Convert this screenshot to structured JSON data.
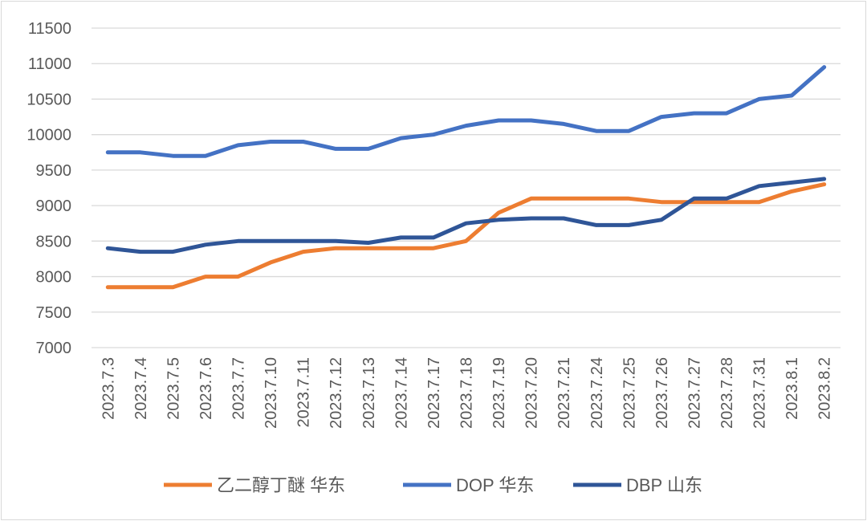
{
  "chart_data": {
    "type": "line",
    "title": "",
    "xlabel": "",
    "ylabel": "",
    "ylim": [
      7000,
      11500
    ],
    "yticks": [
      7000,
      7500,
      8000,
      8500,
      9000,
      9500,
      10000,
      10500,
      11000,
      11500
    ],
    "grid": true,
    "legend_position": "bottom",
    "categories": [
      "2023.7.3",
      "2023.7.4",
      "2023.7.5",
      "2023.7.6",
      "2023.7.7",
      "2023.7.10",
      "2023.7.11",
      "2023.7.12",
      "2023.7.13",
      "2023.7.14",
      "2023.7.17",
      "2023.7.18",
      "2023.7.19",
      "2023.7.20",
      "2023.7.21",
      "2023.7.24",
      "2023.7.25",
      "2023.7.26",
      "2023.7.27",
      "2023.7.28",
      "2023.7.31",
      "2023.8.1",
      "2023.8.2"
    ],
    "series": [
      {
        "name": "乙二醇丁醚 华东",
        "color": "#ED7D31",
        "values": [
          7850,
          7850,
          7850,
          8000,
          8000,
          8200,
          8350,
          8400,
          8400,
          8400,
          8400,
          8500,
          8900,
          9100,
          9100,
          9100,
          9100,
          9050,
          9050,
          9050,
          9050,
          9200,
          9300
        ]
      },
      {
        "name": "DOP 华东",
        "color": "#4472C4",
        "values": [
          9750,
          9750,
          9700,
          9700,
          9850,
          9900,
          9900,
          9800,
          9800,
          9950,
          10000,
          10125,
          10200,
          10200,
          10150,
          10050,
          10050,
          10250,
          10300,
          10300,
          10500,
          10550,
          10950
        ]
      },
      {
        "name": "DBP 山东",
        "color": "#2F5597",
        "values": [
          8400,
          8350,
          8350,
          8450,
          8500,
          8500,
          8500,
          8500,
          8475,
          8550,
          8550,
          8750,
          8800,
          8820,
          8820,
          8725,
          8725,
          8800,
          9100,
          9100,
          9275,
          9325,
          9375
        ]
      }
    ]
  }
}
